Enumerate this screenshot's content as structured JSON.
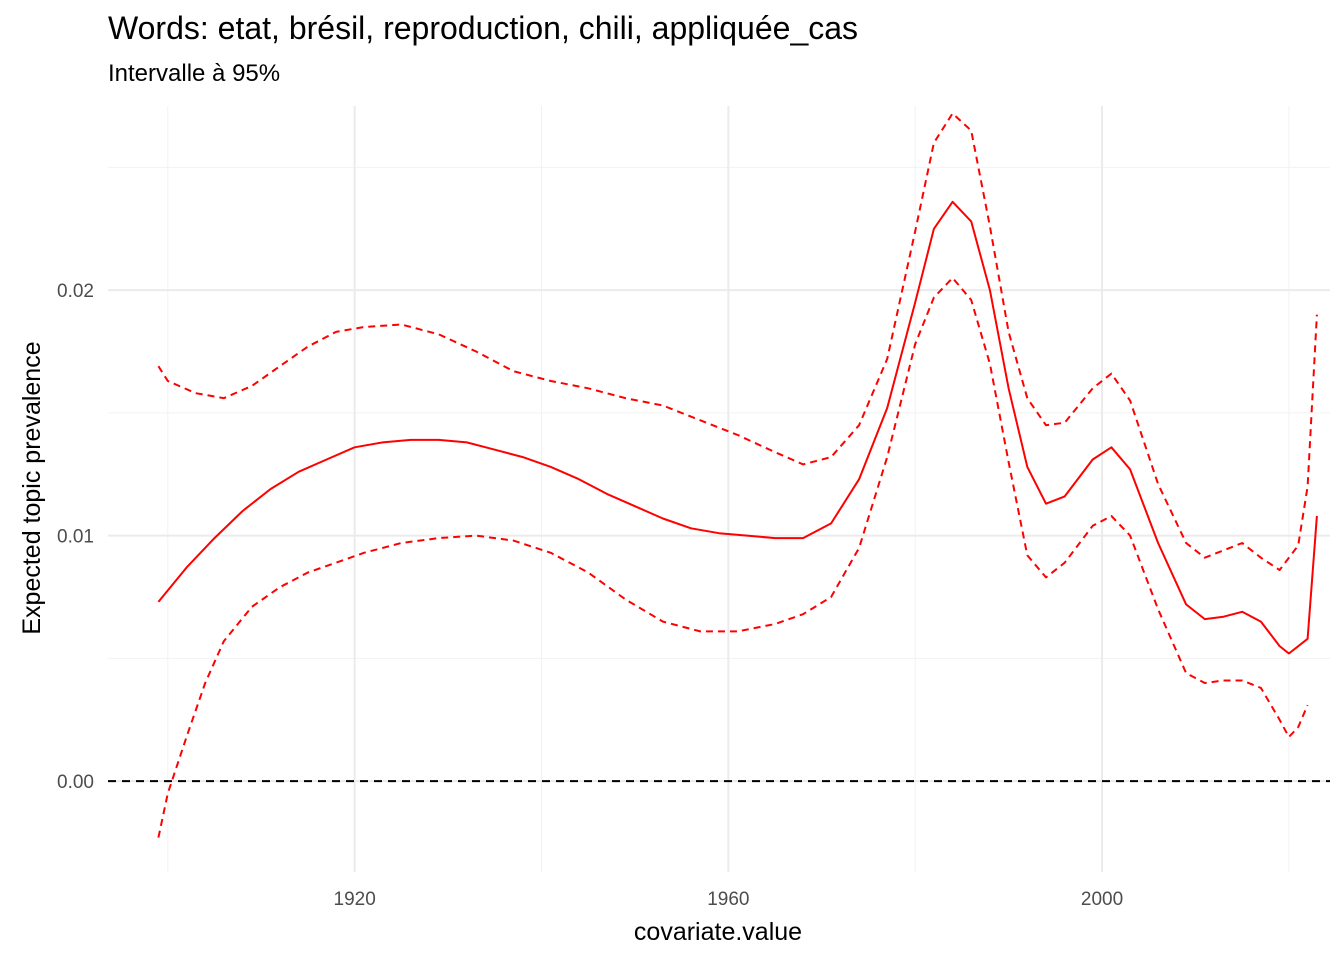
{
  "chart_data": {
    "type": "line",
    "title": "Words: etat, brésil, reproduction, chili, appliquée_cas",
    "subtitle": "Intervalle à 95%",
    "xlabel": "covariate.value",
    "ylabel": "Expected topic prevalence",
    "xlim": [
      1893.6,
      2024.4
    ],
    "ylim": [
      -0.0037,
      0.0275
    ],
    "x_ticks": [
      1920,
      1960,
      2000
    ],
    "x_tick_labels": [
      "1920",
      "1960",
      "2000"
    ],
    "y_ticks": [
      0.0,
      0.01,
      0.02
    ],
    "y_tick_labels": [
      "0.00",
      "0.01",
      "0.02"
    ],
    "reference_line": 0.0,
    "grid": true,
    "series": [
      {
        "role": "estimate",
        "color": "#ff0000",
        "style": "solid",
        "x": [
          1899,
          1902,
          1905,
          1908,
          1911,
          1914,
          1917,
          1920,
          1923,
          1926,
          1929,
          1932,
          1935,
          1938,
          1941,
          1944,
          1947,
          1950,
          1953,
          1956,
          1959,
          1962,
          1965,
          1968,
          1971,
          1974,
          1977,
          1980,
          1982,
          1984,
          1986,
          1988,
          1990,
          1992,
          1994,
          1996,
          1999,
          2001,
          2003,
          2006,
          2009,
          2011,
          2013,
          2015,
          2017,
          2019,
          2020,
          2022,
          2023
        ],
        "y": [
          0.0073,
          0.0087,
          0.0099,
          0.011,
          0.0119,
          0.0126,
          0.0131,
          0.0136,
          0.0138,
          0.0139,
          0.0139,
          0.0138,
          0.0135,
          0.0132,
          0.0128,
          0.0123,
          0.0117,
          0.0112,
          0.0107,
          0.0103,
          0.0101,
          0.01,
          0.0099,
          0.0099,
          0.0105,
          0.0123,
          0.0152,
          0.0195,
          0.0225,
          0.0236,
          0.0228,
          0.02,
          0.016,
          0.0128,
          0.0113,
          0.0116,
          0.0131,
          0.0136,
          0.0127,
          0.0097,
          0.0072,
          0.0066,
          0.0067,
          0.0069,
          0.0065,
          0.0055,
          0.0052,
          0.0058,
          0.0108
        ]
      },
      {
        "role": "upper bound",
        "color": "#ff0000",
        "style": "dashed",
        "x": [
          1899,
          1900,
          1903,
          1906,
          1909,
          1912,
          1915,
          1918,
          1921,
          1925,
          1929,
          1933,
          1937,
          1941,
          1945,
          1949,
          1953,
          1957,
          1961,
          1965,
          1968,
          1971,
          1974,
          1977,
          1980,
          1982,
          1984,
          1986,
          1988,
          1990,
          1992,
          1994,
          1996,
          1999,
          2001,
          2003,
          2006,
          2009,
          2011,
          2013,
          2015,
          2017,
          2019,
          2021,
          2022,
          2023
        ],
        "y": [
          0.0169,
          0.0163,
          0.0158,
          0.0156,
          0.0161,
          0.0169,
          0.0177,
          0.0183,
          0.0185,
          0.0186,
          0.0182,
          0.0175,
          0.0167,
          0.0163,
          0.016,
          0.0156,
          0.0153,
          0.0147,
          0.0141,
          0.0134,
          0.0129,
          0.0132,
          0.0145,
          0.0172,
          0.0224,
          0.026,
          0.0272,
          0.0265,
          0.0226,
          0.0183,
          0.0156,
          0.0145,
          0.0146,
          0.016,
          0.0166,
          0.0155,
          0.0121,
          0.0097,
          0.0091,
          0.0094,
          0.0097,
          0.0091,
          0.0086,
          0.0096,
          0.012,
          0.019
        ]
      },
      {
        "role": "lower bound",
        "color": "#ff0000",
        "style": "dashed",
        "x": [
          1899,
          1900,
          1902,
          1904,
          1906,
          1909,
          1912,
          1915,
          1918,
          1921,
          1925,
          1929,
          1933,
          1937,
          1941,
          1945,
          1949,
          1953,
          1957,
          1961,
          1965,
          1968,
          1971,
          1974,
          1977,
          1980,
          1982,
          1984,
          1986,
          1988,
          1990,
          1992,
          1994,
          1996,
          1999,
          2001,
          2003,
          2006,
          2009,
          2011,
          2013,
          2015,
          2017,
          2019,
          2020,
          2021,
          2022
        ],
        "y": [
          -0.0023,
          -0.0005,
          0.0018,
          0.004,
          0.0057,
          0.0071,
          0.0079,
          0.0085,
          0.0089,
          0.0093,
          0.0097,
          0.0099,
          0.01,
          0.0098,
          0.0093,
          0.0085,
          0.0074,
          0.0065,
          0.0061,
          0.0061,
          0.0064,
          0.0068,
          0.0075,
          0.0095,
          0.0132,
          0.0178,
          0.0197,
          0.0205,
          0.0196,
          0.017,
          0.013,
          0.0092,
          0.0083,
          0.0089,
          0.0104,
          0.0108,
          0.01,
          0.007,
          0.0044,
          0.004,
          0.0041,
          0.0041,
          0.0038,
          0.0025,
          0.0018,
          0.0022,
          0.0031
        ]
      }
    ]
  }
}
